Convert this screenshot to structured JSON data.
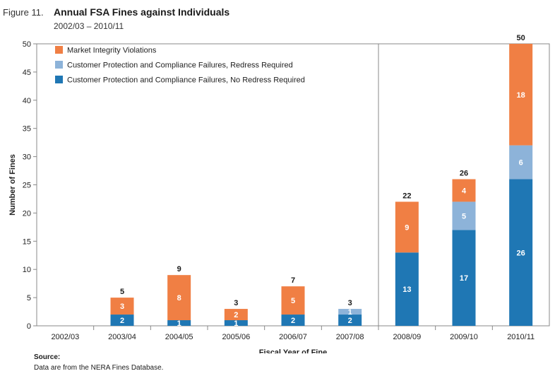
{
  "figure": {
    "label": "Figure 11.",
    "title": "Annual FSA Fines against Individuals",
    "subtitle": "2002/03 – 2010/11"
  },
  "source": {
    "label": "Source:",
    "text": "Data are from the NERA Fines Database."
  },
  "chart_data": {
    "type": "bar",
    "stacked": true,
    "title": "Annual FSA Fines against Individuals",
    "subtitle": "2002/03 – 2010/11",
    "xlabel": "Fiscal Year of Fine",
    "ylabel": "Number of Fines",
    "ylim": [
      0,
      50
    ],
    "yticks": [
      0,
      5,
      10,
      15,
      20,
      25,
      30,
      35,
      40,
      45,
      50
    ],
    "grid": false,
    "legend_position": "top-left",
    "categories": [
      "2002/03",
      "2003/04",
      "2004/05",
      "2005/06",
      "2006/07",
      "2007/08",
      "2008/09",
      "2009/10",
      "2010/11"
    ],
    "series": [
      {
        "name": "Customer Protection and Compliance Failures, No Redress Required",
        "color": "#1f77b4",
        "values": [
          0,
          2,
          1,
          1,
          2,
          2,
          13,
          17,
          26
        ]
      },
      {
        "name": "Customer Protection and Compliance Failures, Redress Required",
        "color": "#8db3d9",
        "values": [
          0,
          0,
          0,
          0,
          0,
          1,
          0,
          5,
          6
        ]
      },
      {
        "name": "Market Integrity Violations",
        "color": "#f07f44",
        "values": [
          0,
          3,
          8,
          2,
          5,
          0,
          9,
          4,
          18
        ]
      }
    ],
    "totals": [
      null,
      5,
      9,
      3,
      7,
      3,
      22,
      26,
      50
    ],
    "legend_order": [
      "Market Integrity Violations",
      "Customer Protection and Compliance Failures, Redress Required",
      "Customer Protection and Compliance Failures, No Redress Required"
    ],
    "divider_after_category": "2007/08"
  }
}
